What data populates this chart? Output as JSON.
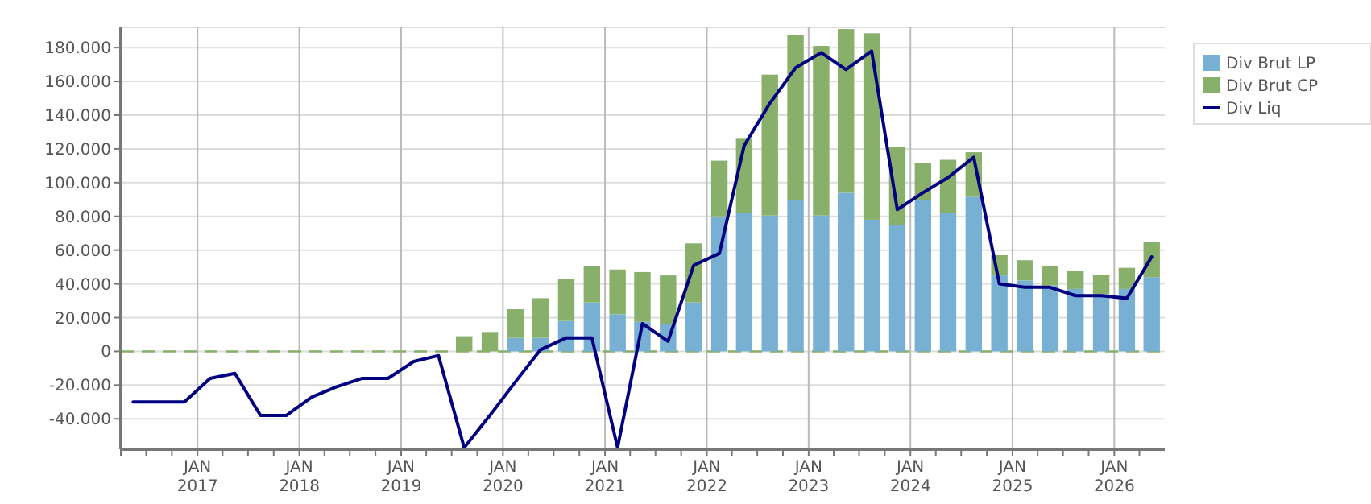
{
  "chart_data": {
    "type": "bar",
    "stacked": true,
    "x": [
      "2016-05-15",
      "2016-08-15",
      "2016-11-15",
      "2017-02-15",
      "2017-05-15",
      "2017-08-15",
      "2017-11-15",
      "2018-02-15",
      "2018-05-15",
      "2018-08-15",
      "2018-11-15",
      "2019-02-15",
      "2019-05-15",
      "2019-08-15",
      "2019-11-15",
      "2020-02-15",
      "2020-05-15",
      "2020-08-15",
      "2020-11-15",
      "2021-02-15",
      "2021-05-15",
      "2021-08-15",
      "2021-11-15",
      "2022-02-15",
      "2022-05-15",
      "2022-08-15",
      "2022-11-15",
      "2023-02-15",
      "2023-05-15",
      "2023-08-15",
      "2023-11-15",
      "2024-02-15",
      "2024-05-15",
      "2024-08-15",
      "2024-11-15",
      "2025-02-15",
      "2025-05-15",
      "2025-08-15",
      "2025-11-15",
      "2026-02-15",
      "2026-05-15"
    ],
    "series": [
      {
        "name": "Div Brut LP",
        "color": "#78b0d4",
        "values": [
          null,
          null,
          null,
          null,
          null,
          null,
          null,
          null,
          null,
          null,
          null,
          null,
          null,
          0,
          0,
          8000,
          8000,
          18000,
          29000,
          22000,
          17500,
          16000,
          29000,
          80000,
          82000,
          80500,
          89500,
          80500,
          94000,
          78000,
          75000,
          89500,
          82000,
          91500,
          45000,
          42000,
          39000,
          37000,
          34000,
          37000,
          44000
        ]
      },
      {
        "name": "Div Brut CP",
        "color": "#88b06a",
        "values": [
          null,
          null,
          null,
          null,
          null,
          null,
          null,
          null,
          null,
          null,
          null,
          null,
          null,
          9000,
          11500,
          17000,
          23500,
          25000,
          21500,
          26500,
          29500,
          29000,
          35000,
          33000,
          44000,
          83500,
          98000,
          100500,
          97000,
          110500,
          46000,
          22000,
          31500,
          26500,
          12000,
          12000,
          11500,
          10500,
          11500,
          12500,
          21000
        ]
      },
      {
        "name": "Div Liq",
        "type": "line",
        "color": "#000080",
        "values": [
          -30000,
          -30000,
          -30000,
          -16000,
          -13000,
          -38000,
          -38000,
          -27000,
          -21000,
          -16000,
          -16000,
          -6000,
          -2500,
          -57000,
          -38000,
          -18000,
          1000,
          8000,
          8000,
          -57000,
          16500,
          6000,
          51000,
          58000,
          122000,
          147000,
          168000,
          177000,
          167000,
          178000,
          84000,
          94000,
          103000,
          115000,
          40000,
          38000,
          38000,
          33000,
          33000,
          31500,
          56000
        ]
      }
    ],
    "xlim": [
      "2016-04-01",
      "2026-07-01"
    ],
    "xticks": [
      {
        "value": "2016-04-01",
        "label": null
      },
      {
        "value": "2016-07-01",
        "label": null
      },
      {
        "value": "2016-10-01",
        "label": null
      },
      {
        "value": "2017-01-01",
        "label": "JAN\n2017"
      },
      {
        "value": "2017-04-01",
        "label": null
      },
      {
        "value": "2017-07-01",
        "label": null
      },
      {
        "value": "2017-10-01",
        "label": null
      },
      {
        "value": "2018-01-01",
        "label": "JAN\n2018"
      },
      {
        "value": "2018-04-01",
        "label": null
      },
      {
        "value": "2018-07-01",
        "label": null
      },
      {
        "value": "2018-10-01",
        "label": null
      },
      {
        "value": "2019-01-01",
        "label": "JAN\n2019"
      },
      {
        "value": "2019-04-01",
        "label": null
      },
      {
        "value": "2019-07-01",
        "label": null
      },
      {
        "value": "2019-10-01",
        "label": null
      },
      {
        "value": "2020-01-01",
        "label": "JAN\n2020"
      },
      {
        "value": "2020-04-01",
        "label": null
      },
      {
        "value": "2020-07-01",
        "label": null
      },
      {
        "value": "2020-10-01",
        "label": null
      },
      {
        "value": "2021-01-01",
        "label": "JAN\n2021"
      },
      {
        "value": "2021-04-01",
        "label": null
      },
      {
        "value": "2021-07-01",
        "label": null
      },
      {
        "value": "2021-10-01",
        "label": null
      },
      {
        "value": "2022-01-01",
        "label": "JAN\n2022"
      },
      {
        "value": "2022-04-01",
        "label": null
      },
      {
        "value": "2022-07-01",
        "label": null
      },
      {
        "value": "2022-10-01",
        "label": null
      },
      {
        "value": "2023-01-01",
        "label": "JAN\n2023"
      },
      {
        "value": "2023-04-01",
        "label": null
      },
      {
        "value": "2023-07-01",
        "label": null
      },
      {
        "value": "2023-10-01",
        "label": null
      },
      {
        "value": "2024-01-01",
        "label": "JAN\n2024"
      },
      {
        "value": "2024-04-01",
        "label": null
      },
      {
        "value": "2024-07-01",
        "label": null
      },
      {
        "value": "2024-10-01",
        "label": null
      },
      {
        "value": "2025-01-01",
        "label": "JAN\n2025"
      },
      {
        "value": "2025-04-01",
        "label": null
      },
      {
        "value": "2025-07-01",
        "label": null
      },
      {
        "value": "2025-10-01",
        "label": null
      },
      {
        "value": "2026-01-01",
        "label": "JAN\n2026"
      },
      {
        "value": "2026-04-01",
        "label": null
      }
    ],
    "ylim": [
      -58000,
      192000
    ],
    "yticks": [
      {
        "value": -40000,
        "label": "-40.000"
      },
      {
        "value": -20000,
        "label": "-20.000"
      },
      0,
      {
        "value": 20000,
        "label": "20.000"
      },
      {
        "value": 40000,
        "label": "40.000"
      },
      {
        "value": 60000,
        "label": "60.000"
      },
      {
        "value": 80000,
        "label": "80.000"
      },
      {
        "value": 100000,
        "label": "100.000"
      },
      {
        "value": 120000,
        "label": "120.000"
      },
      {
        "value": 140000,
        "label": "140.000"
      },
      {
        "value": 160000,
        "label": "160.000"
      },
      {
        "value": 180000,
        "label": "180.000"
      }
    ],
    "ref_lines": [
      {
        "axis": "y",
        "value": 0,
        "label": null,
        "color": "#88b06a",
        "line_style": "dashed"
      }
    ],
    "grid": true,
    "legend": "top right",
    "line_style": "solid",
    "marker": "none"
  }
}
